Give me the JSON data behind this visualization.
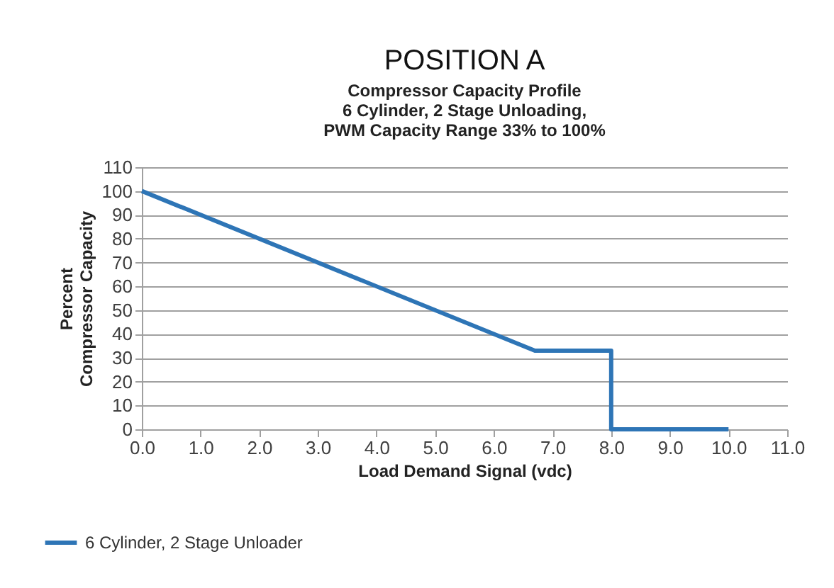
{
  "chart_data": {
    "type": "line",
    "title": "POSITION A",
    "subtitle": "Compressor Capacity Profile\n6 Cylinder, 2 Stage Unloading,\nPWM Capacity Range 33% to 100%",
    "xlabel": "Load Demand Signal (vdc)",
    "ylabel": "Percent\nCompressor Capacity",
    "series": [
      {
        "name": "6 Cylinder, 2 Stage Unloader",
        "color": "#2e75b6",
        "x": [
          0,
          6.7,
          8,
          8,
          10
        ],
        "values": [
          100,
          33,
          33,
          0,
          0
        ]
      }
    ],
    "xlim": [
      0,
      11
    ],
    "xticks": [
      {
        "value": 0,
        "label": "0.0"
      },
      {
        "value": 1,
        "label": "1.0"
      },
      {
        "value": 2,
        "label": "2.0"
      },
      {
        "value": 3,
        "label": "3.0"
      },
      {
        "value": 4,
        "label": "4.0"
      },
      {
        "value": 5,
        "label": "5.0"
      },
      {
        "value": 6,
        "label": "6.0"
      },
      {
        "value": 7,
        "label": "7.0"
      },
      {
        "value": 8,
        "label": "8.0"
      },
      {
        "value": 9,
        "label": "9.0"
      },
      {
        "value": 10,
        "label": "10.0"
      },
      {
        "value": 11,
        "label": "11.0"
      }
    ],
    "ylim": [
      0,
      110
    ],
    "yticks": [
      0,
      10,
      20,
      30,
      40,
      50,
      60,
      70,
      80,
      90,
      100,
      110
    ],
    "grid": "y",
    "legend": "bottom left",
    "line_style": "solid"
  }
}
